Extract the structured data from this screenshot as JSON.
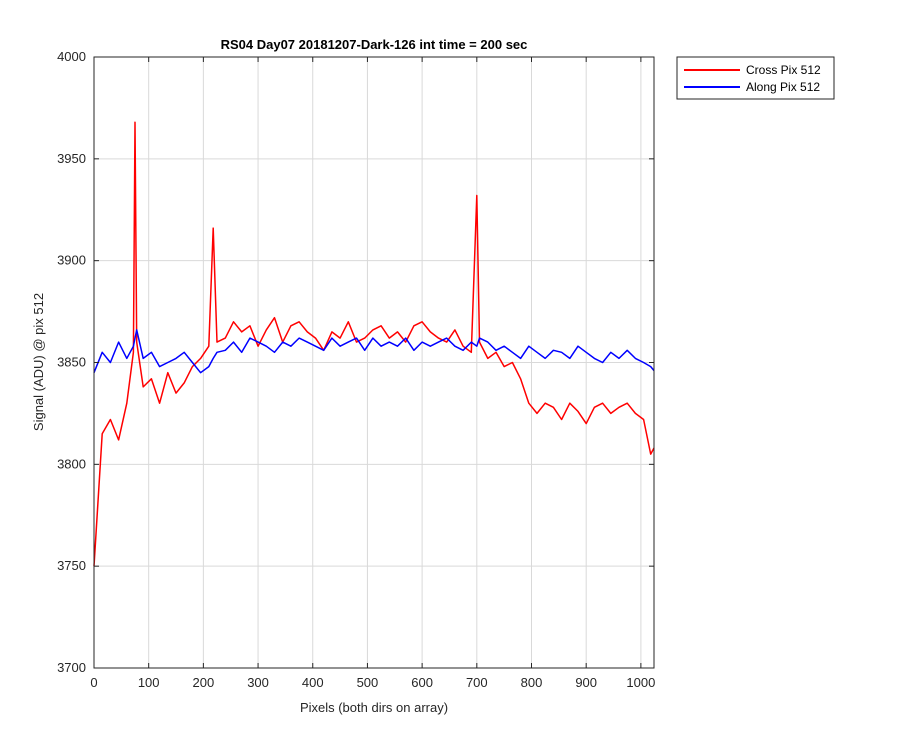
{
  "chart_data": {
    "type": "line",
    "title": "RS04 Day07 20181207-Dark-126 int time = 200 sec",
    "xlabel": "Pixels (both dirs on array)",
    "ylabel": "Signal (ADU) @ pix 512",
    "xlim": [
      0,
      1024
    ],
    "ylim": [
      3700,
      4000
    ],
    "xticks": [
      0,
      100,
      200,
      300,
      400,
      500,
      600,
      700,
      800,
      900,
      1000
    ],
    "yticks": [
      3700,
      3750,
      3800,
      3850,
      3900,
      3950,
      4000
    ],
    "grid": true,
    "legend_position": "outside-top-right",
    "x": [
      0,
      15,
      30,
      45,
      60,
      72,
      75,
      78,
      90,
      105,
      120,
      135,
      150,
      165,
      180,
      195,
      210,
      218,
      225,
      240,
      255,
      270,
      285,
      300,
      315,
      330,
      345,
      360,
      375,
      390,
      405,
      420,
      435,
      450,
      465,
      480,
      495,
      510,
      525,
      540,
      555,
      570,
      585,
      600,
      615,
      630,
      645,
      660,
      675,
      690,
      700,
      705,
      720,
      735,
      750,
      765,
      780,
      795,
      810,
      825,
      840,
      855,
      870,
      885,
      900,
      915,
      930,
      945,
      960,
      975,
      990,
      1005,
      1018,
      1024
    ],
    "series": [
      {
        "name": "Cross Pix 512",
        "color": "#ff0000",
        "values": [
          3750,
          3815,
          3822,
          3812,
          3830,
          3855,
          3968,
          3860,
          3838,
          3842,
          3830,
          3845,
          3835,
          3840,
          3848,
          3852,
          3858,
          3916,
          3860,
          3862,
          3870,
          3865,
          3868,
          3858,
          3866,
          3872,
          3860,
          3868,
          3870,
          3865,
          3862,
          3856,
          3865,
          3862,
          3870,
          3860,
          3862,
          3866,
          3868,
          3862,
          3865,
          3860,
          3868,
          3870,
          3865,
          3862,
          3860,
          3866,
          3858,
          3855,
          3932,
          3860,
          3852,
          3855,
          3848,
          3850,
          3842,
          3830,
          3825,
          3830,
          3828,
          3822,
          3830,
          3826,
          3820,
          3828,
          3830,
          3825,
          3828,
          3830,
          3825,
          3822,
          3805,
          3808
        ]
      },
      {
        "name": "Along Pix 512",
        "color": "#0000ff",
        "values": [
          3845,
          3855,
          3850,
          3860,
          3852,
          3858,
          3862,
          3866,
          3852,
          3855,
          3848,
          3850,
          3852,
          3855,
          3850,
          3845,
          3848,
          3852,
          3855,
          3856,
          3860,
          3855,
          3862,
          3860,
          3858,
          3855,
          3860,
          3858,
          3862,
          3860,
          3858,
          3856,
          3862,
          3858,
          3860,
          3862,
          3856,
          3862,
          3858,
          3860,
          3858,
          3862,
          3856,
          3860,
          3858,
          3860,
          3862,
          3858,
          3856,
          3860,
          3858,
          3862,
          3860,
          3856,
          3858,
          3855,
          3852,
          3858,
          3855,
          3852,
          3856,
          3855,
          3852,
          3858,
          3855,
          3852,
          3850,
          3855,
          3852,
          3856,
          3852,
          3850,
          3848,
          3846
        ]
      }
    ]
  }
}
